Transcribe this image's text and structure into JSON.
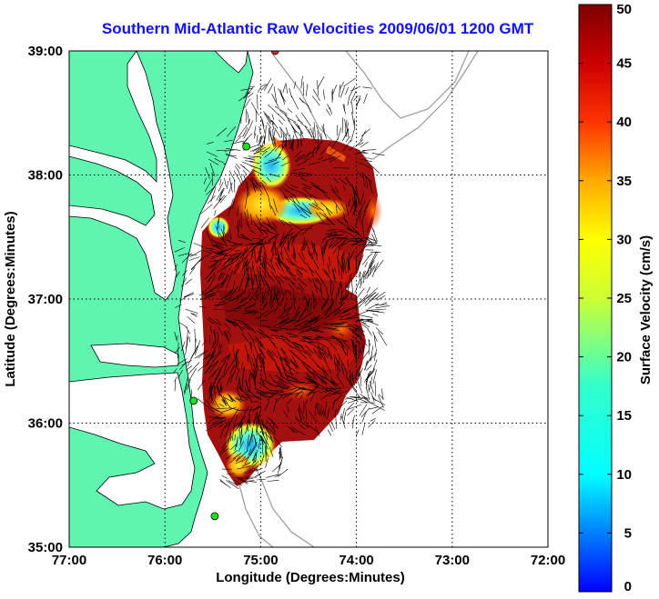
{
  "title": "Southern Mid-Atlantic Raw Velocities 2009/06/01 1200 GMT",
  "xlabel": "Longitude (Degrees:Minutes)",
  "ylabel": "Latitude (Degrees:Minutes)",
  "colorbar_label": "Surface Velocity (cm/s)",
  "x_ticks": [
    "77:00",
    "76:00",
    "75:00",
    "74:00",
    "73:00",
    "72:00"
  ],
  "y_ticks": [
    "39:00",
    "38:00",
    "37:00",
    "36:00",
    "35:00"
  ],
  "colorbar_ticks": [
    "0",
    "5",
    "10",
    "15",
    "20",
    "25",
    "30",
    "35",
    "40",
    "45",
    "50"
  ],
  "colors": {
    "land": "#5ff5b0",
    "ocean": "#ffffff",
    "title": "#1010ff",
    "station": "#22dd22",
    "station_red": "#ee2222"
  },
  "chart_data": {
    "type": "heatmap",
    "title": "Southern Mid-Atlantic Raw Velocities 2009/06/01 1200 GMT",
    "xlabel": "Longitude (Degrees:Minutes)",
    "ylabel": "Latitude (Degrees:Minutes)",
    "xlim": [
      -77,
      -72
    ],
    "ylim": [
      35,
      39
    ],
    "colorbar": {
      "label": "Surface Velocity (cm/s)",
      "range": [
        0,
        50
      ]
    },
    "grid": true,
    "stations": [
      {
        "lon": -74.85,
        "lat": 39.0,
        "color": "red"
      },
      {
        "lon": -75.15,
        "lat": 38.23,
        "color": "green"
      },
      {
        "lon": -75.7,
        "lat": 36.18,
        "color": "green"
      },
      {
        "lon": -75.48,
        "lat": 35.25,
        "color": "green"
      }
    ]
  }
}
